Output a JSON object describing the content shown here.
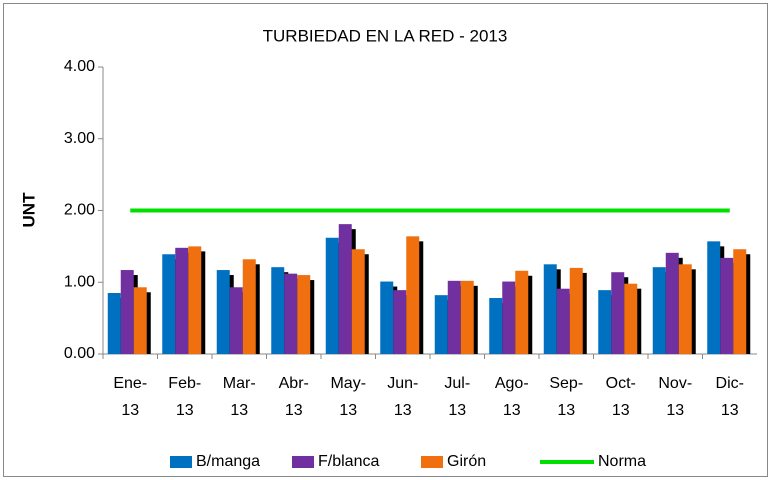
{
  "chart_data": {
    "type": "bar",
    "title": "TURBIEDAD EN LA RED - 2013",
    "y_label": "UNT",
    "categories": [
      "Ene-13",
      "Feb-13",
      "Mar-13",
      "Abr-13",
      "May-13",
      "Jun-13",
      "Jul-13",
      "Ago-13",
      "Sep-13",
      "Oct-13",
      "Nov-13",
      "Dic-13"
    ],
    "series": [
      {
        "name": "B/manga",
        "type": "bar",
        "color": "#0070c0",
        "values": [
          0.85,
          1.39,
          1.17,
          1.21,
          1.62,
          1.01,
          0.82,
          0.78,
          1.25,
          0.89,
          1.21,
          1.57
        ]
      },
      {
        "name": "F/blanca",
        "type": "bar",
        "color": "#7030a0",
        "values": [
          1.17,
          1.48,
          0.93,
          1.12,
          1.81,
          0.89,
          1.02,
          1.01,
          0.91,
          1.14,
          1.41,
          1.34
        ]
      },
      {
        "name": "Girón",
        "type": "bar",
        "color": "#f07010",
        "values": [
          0.93,
          1.5,
          1.32,
          1.1,
          1.46,
          1.64,
          1.02,
          1.16,
          1.2,
          0.98,
          1.25,
          1.46
        ]
      },
      {
        "name": "Norma",
        "type": "line",
        "color": "#00e000",
        "values": [
          2,
          2,
          2,
          2,
          2,
          2,
          2,
          2,
          2,
          2,
          2,
          2
        ]
      }
    ],
    "ylim": [
      0,
      4
    ],
    "yticks": [
      {
        "value": 0,
        "label": "0.00"
      },
      {
        "value": 1,
        "label": "1.00"
      },
      {
        "value": 2,
        "label": "2.00"
      },
      {
        "value": 3,
        "label": "3.00"
      },
      {
        "value": 4,
        "label": "4.00"
      }
    ],
    "grid": false,
    "legend": "bottom"
  }
}
